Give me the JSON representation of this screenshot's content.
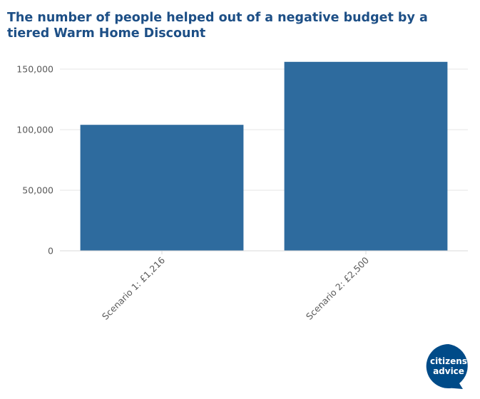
{
  "chart_data": {
    "type": "bar",
    "title": "The number of people helped out of a negative budget by a tiered Warm Home Discount",
    "categories": [
      "Scenario 1: £1,216",
      "Scenario 2: £2,500"
    ],
    "values": [
      104000,
      156000
    ],
    "ylim": [
      0,
      160000
    ],
    "yticks": [
      0,
      50000,
      100000,
      150000
    ],
    "ytick_labels": [
      "0",
      "50,000",
      "100,000",
      "150,000"
    ],
    "xlabel": "",
    "ylabel": "",
    "grid": true,
    "colors": {
      "bar": "#2e6b9e",
      "grid": "#e6e6e6",
      "axis": "#d9d9d9",
      "title": "#1d4f86",
      "tick_text": "#5a5a5a"
    }
  },
  "brand": {
    "logo_line1": "citizens",
    "logo_line2": "advice",
    "logo_color": "#004b88"
  }
}
